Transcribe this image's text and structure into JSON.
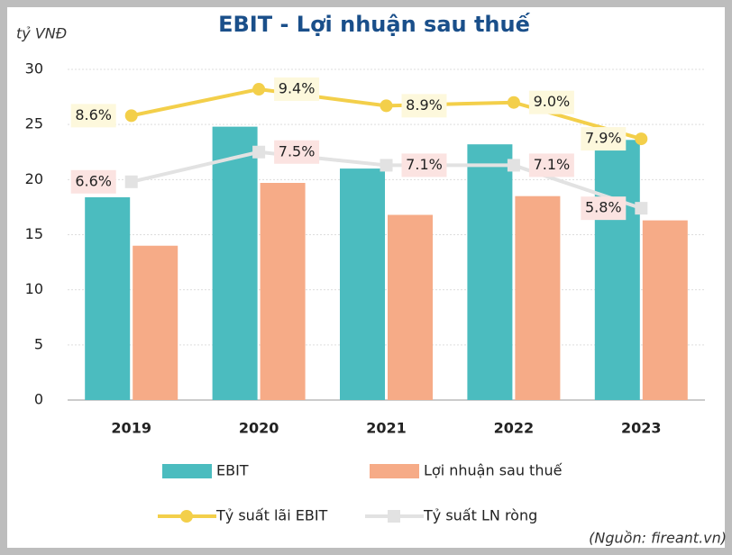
{
  "chart_data": {
    "type": "bar-line",
    "title": "EBIT - Lợi nhuận sau thuế",
    "y_label": "tỷ VNĐ",
    "source": "(Nguồn: fireant.vn)",
    "categories": [
      "2019",
      "2020",
      "2021",
      "2022",
      "2023"
    ],
    "ylim": [
      0,
      30
    ],
    "yticks": [
      0,
      5,
      10,
      15,
      20,
      25,
      30
    ],
    "y2lim": [
      0,
      10
    ],
    "grid": true,
    "legend": "bottom",
    "series": [
      {
        "name": "EBIT",
        "kind": "bar",
        "color": "#4bbcbf",
        "values": [
          18.4,
          24.8,
          21.0,
          23.2,
          23.6
        ]
      },
      {
        "name": "Lợi nhuận sau thuế",
        "kind": "bar",
        "color": "#f6ab87",
        "values": [
          14.0,
          19.7,
          16.8,
          18.5,
          16.3
        ]
      },
      {
        "name": "Tỷ suất lãi EBIT",
        "kind": "line",
        "axis": "y2",
        "color": "#f3cf4a",
        "label_bg": "#fdf8dc",
        "values": [
          8.6,
          9.4,
          8.9,
          9.0,
          7.9
        ],
        "value_labels": [
          "8.6%",
          "9.4%",
          "8.9%",
          "9.0%",
          "7.9%"
        ]
      },
      {
        "name": "Tỷ suất LN ròng",
        "kind": "line",
        "axis": "y2",
        "color": "#e2e2e2",
        "label_bg": "#fbe3e1",
        "values": [
          6.6,
          7.5,
          7.1,
          7.1,
          5.8
        ],
        "value_labels": [
          "6.6%",
          "7.5%",
          "7.1%",
          "7.1%",
          "5.8%"
        ]
      }
    ]
  }
}
